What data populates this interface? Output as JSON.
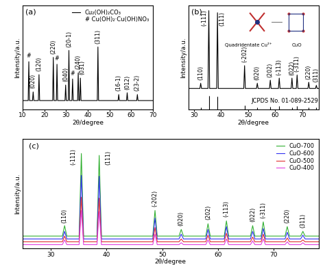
{
  "chart_data": [
    {
      "type": "line",
      "title": "(a)",
      "x_label": "2θ/degree",
      "y_label": "Intensity/a.u.",
      "xlim": [
        10,
        70
      ],
      "xticks": [
        10,
        20,
        30,
        40,
        50,
        60,
        70
      ],
      "ylim": [
        0,
        120
      ],
      "yticks": [],
      "tick_labels": "x",
      "legend": "upper right",
      "note": "# Cu(OH)₂·Cu(OH)NO₃",
      "series": [
        {
          "name": "Cu₂(OH)₂CO₃",
          "color": "#000000",
          "x": [
            10,
            12.5,
            12.8,
            13.1,
            14.5,
            14.8,
            15.1,
            17.2,
            17.5,
            17.8,
            23.8,
            24.1,
            24.4,
            25.5,
            25.8,
            26.1,
            29.5,
            29.8,
            30.1,
            31.0,
            31.3,
            31.6,
            32.7,
            33.0,
            33.3,
            35.3,
            35.6,
            35.9,
            36.3,
            36.6,
            36.9,
            44.4,
            44.7,
            45.0,
            54.0,
            54.3,
            54.6,
            57.9,
            58.2,
            58.5,
            62.6,
            62.9,
            63.2,
            70
          ],
          "values": [
            10,
            10,
            55,
            10,
            10,
            20,
            10,
            10,
            40,
            10,
            10,
            60,
            10,
            10,
            52,
            10,
            10,
            28,
            10,
            10,
            68,
            10,
            10,
            35,
            10,
            10,
            42,
            10,
            10,
            36,
            10,
            10,
            72,
            10,
            10,
            17,
            10,
            10,
            19,
            10,
            10,
            17,
            10,
            10
          ]
        }
      ],
      "annotations": [
        {
          "x": 12.8,
          "y": 58,
          "text": "#"
        },
        {
          "x": 14.8,
          "y": 24,
          "text": "(020)"
        },
        {
          "x": 17.5,
          "y": 44,
          "text": "(120)"
        },
        {
          "x": 24.1,
          "y": 64,
          "text": "(220)"
        },
        {
          "x": 25.8,
          "y": 55,
          "text": "#"
        },
        {
          "x": 29.8,
          "y": 32,
          "text": "(040)"
        },
        {
          "x": 31.3,
          "y": 72,
          "text": "(20-1)"
        },
        {
          "x": 33.0,
          "y": 38,
          "text": "#"
        },
        {
          "x": 35.6,
          "y": 46,
          "text": "(240)"
        },
        {
          "x": 37.3,
          "y": 40,
          "text": "(031)"
        },
        {
          "x": 44.7,
          "y": 76,
          "text": "(311)"
        },
        {
          "x": 54.3,
          "y": 21,
          "text": "(16-1)"
        },
        {
          "x": 58.2,
          "y": 23,
          "text": "(012)"
        },
        {
          "x": 62.9,
          "y": 21,
          "text": "(23-2)"
        }
      ]
    },
    {
      "type": "line",
      "title": "(b)",
      "x_label": "2θ/degree",
      "y_label": "Intensity/a.u.",
      "xlim": [
        28,
        76
      ],
      "xticks": [
        30,
        40,
        50,
        60,
        70
      ],
      "ylim": [
        0,
        100
      ],
      "yticks": [],
      "tick_labels": "x",
      "inset_labels": [
        {
          "x": 50,
          "y": 60,
          "text": "Quadridentate Cu²⁺"
        },
        {
          "x": 68,
          "y": 60,
          "text": "CuO"
        }
      ],
      "series": [
        {
          "name": "CuO",
          "color": "#000000",
          "x": [
            28,
            32.2,
            32.5,
            32.8,
            35.2,
            35.5,
            35.8,
            38.4,
            38.7,
            39.0,
            48.4,
            48.7,
            49.0,
            53.1,
            53.4,
            53.7,
            57.9,
            58.2,
            58.5,
            61.2,
            61.5,
            61.8,
            65.9,
            66.2,
            66.5,
            67.8,
            68.1,
            68.4,
            72.1,
            72.4,
            72.7,
            74.9,
            75.2,
            75.5,
            76
          ],
          "values": [
            20,
            20,
            25,
            20,
            20,
            95,
            20,
            20,
            93,
            20,
            20,
            42,
            20,
            20,
            25,
            20,
            20,
            28,
            20,
            20,
            30,
            20,
            20,
            30,
            20,
            20,
            33,
            20,
            20,
            26,
            20,
            20,
            23,
            20,
            20
          ]
        },
        {
          "name": "JCPDS No. 01-089-2529",
          "type": "stem",
          "color": "#000000",
          "x": [
            32.5,
            35.5,
            38.7,
            48.7,
            53.4,
            58.2,
            61.5,
            66.2,
            68.1,
            72.4,
            75.2
          ],
          "values": [
            2,
            13,
            12,
            4,
            2,
            2.5,
            3,
            2,
            3,
            2,
            1.5
          ]
        }
      ],
      "annotations": [
        {
          "x": 32.5,
          "y": 28,
          "text": "(110)"
        },
        {
          "x": 33.8,
          "y": 80,
          "text": "(-111)"
        },
        {
          "x": 40.4,
          "y": 80,
          "text": "(111)"
        },
        {
          "x": 48.7,
          "y": 45,
          "text": "(-202)"
        },
        {
          "x": 53.4,
          "y": 28,
          "text": "(020)"
        },
        {
          "x": 58.2,
          "y": 31,
          "text": "(202)"
        },
        {
          "x": 61.5,
          "y": 33,
          "text": "(-113)"
        },
        {
          "x": 66.2,
          "y": 33,
          "text": "(022)"
        },
        {
          "x": 68.1,
          "y": 36,
          "text": "(-311)"
        },
        {
          "x": 72.4,
          "y": 29,
          "text": "(220)"
        },
        {
          "x": 75.0,
          "y": 26,
          "text": "(311)"
        }
      ]
    },
    {
      "type": "line",
      "title": "(c)",
      "x_label": "2θ/degree",
      "y_label": "Intensity/a.u.",
      "xlim": [
        25,
        78
      ],
      "xticks": [
        30,
        40,
        50,
        60,
        70
      ],
      "ylim": [
        0,
        115
      ],
      "yticks": [],
      "tick_labels": "x",
      "legend": "upper right",
      "series": [
        {
          "name": "CuO-700",
          "color": "#33b033",
          "x": [
            25,
            32.1,
            32.5,
            32.9,
            35.1,
            35.5,
            35.9,
            38.3,
            38.7,
            39.1,
            48.3,
            48.7,
            49.1,
            53.0,
            53.4,
            53.8,
            57.8,
            58.2,
            58.6,
            61.1,
            61.5,
            61.9,
            65.8,
            66.2,
            66.6,
            67.7,
            68.1,
            68.5,
            72.0,
            72.4,
            72.8,
            74.8,
            75.2,
            75.6,
            78
          ],
          "values": [
            13,
            13,
            24,
            13,
            13,
            100,
            13,
            13,
            98,
            13,
            13,
            40,
            13,
            13,
            20,
            13,
            13,
            26,
            13,
            13,
            29,
            13,
            13,
            24,
            13,
            13,
            28,
            13,
            13,
            23,
            13,
            13,
            18,
            13,
            13
          ]
        },
        {
          "name": "CuO-600",
          "color": "#3030f0",
          "x": [
            25,
            32.1,
            32.5,
            32.9,
            35.1,
            35.5,
            35.9,
            38.3,
            38.7,
            39.1,
            48.3,
            48.7,
            49.1,
            53.0,
            53.4,
            53.8,
            57.8,
            58.2,
            58.6,
            61.1,
            61.5,
            61.9,
            65.8,
            66.2,
            66.6,
            67.7,
            68.1,
            68.5,
            72.0,
            72.4,
            72.8,
            74.8,
            75.2,
            75.6,
            78
          ],
          "values": [
            10,
            10,
            18,
            10,
            10,
            77,
            10,
            10,
            76,
            10,
            10,
            32,
            10,
            10,
            15,
            10,
            10,
            20,
            10,
            10,
            23,
            10,
            10,
            18,
            10,
            10,
            21,
            10,
            10,
            17,
            10,
            10,
            14,
            10,
            10
          ]
        },
        {
          "name": "CuO-500",
          "color": "#e03030",
          "x": [
            25,
            32.1,
            32.5,
            32.9,
            35.1,
            35.5,
            35.9,
            38.3,
            38.7,
            39.1,
            48.3,
            48.7,
            49.1,
            53.0,
            53.4,
            53.8,
            57.8,
            58.2,
            58.6,
            61.1,
            61.5,
            61.9,
            65.8,
            66.2,
            66.6,
            67.7,
            68.1,
            68.5,
            72.0,
            72.4,
            72.8,
            74.8,
            75.2,
            75.6,
            78
          ],
          "values": [
            7,
            7,
            13,
            7,
            7,
            54,
            7,
            7,
            53,
            7,
            7,
            22,
            7,
            7,
            10,
            7,
            7,
            14,
            7,
            7,
            16,
            7,
            7,
            12,
            7,
            7,
            15,
            7,
            7,
            11,
            7,
            7,
            9,
            7,
            7
          ]
        },
        {
          "name": "CuO-400",
          "color": "#e040e0",
          "x": [
            25,
            32.1,
            32.5,
            32.9,
            35.1,
            35.5,
            35.9,
            38.3,
            38.7,
            39.1,
            48.3,
            48.7,
            49.1,
            53.0,
            53.4,
            53.8,
            57.8,
            58.2,
            58.6,
            61.1,
            61.5,
            61.9,
            65.8,
            66.2,
            66.6,
            67.7,
            68.1,
            68.5,
            72.0,
            72.4,
            72.8,
            74.8,
            75.2,
            75.6,
            78
          ],
          "values": [
            4,
            4,
            9,
            4,
            4,
            40,
            4,
            4,
            39,
            4,
            4,
            15,
            4,
            4,
            6,
            4,
            4,
            9,
            4,
            4,
            10,
            4,
            4,
            8,
            4,
            4,
            10,
            4,
            4,
            7,
            4,
            4,
            6,
            4,
            4
          ]
        }
      ],
      "annotations": [
        {
          "x": 32.5,
          "y": 27,
          "text": "(110)"
        },
        {
          "x": 34.0,
          "y": 88,
          "text": "(-111)"
        },
        {
          "x": 40.3,
          "y": 88,
          "text": "(111)"
        },
        {
          "x": 48.7,
          "y": 44,
          "text": "(-202)"
        },
        {
          "x": 53.4,
          "y": 24,
          "text": "(020)"
        },
        {
          "x": 58.2,
          "y": 30,
          "text": "(202)"
        },
        {
          "x": 61.5,
          "y": 33,
          "text": "(-113)"
        },
        {
          "x": 66.2,
          "y": 28,
          "text": "(022)"
        },
        {
          "x": 68.1,
          "y": 32,
          "text": "(-311)"
        },
        {
          "x": 72.4,
          "y": 27,
          "text": "(220)"
        },
        {
          "x": 75.2,
          "y": 22,
          "text": "(311)"
        }
      ]
    }
  ]
}
